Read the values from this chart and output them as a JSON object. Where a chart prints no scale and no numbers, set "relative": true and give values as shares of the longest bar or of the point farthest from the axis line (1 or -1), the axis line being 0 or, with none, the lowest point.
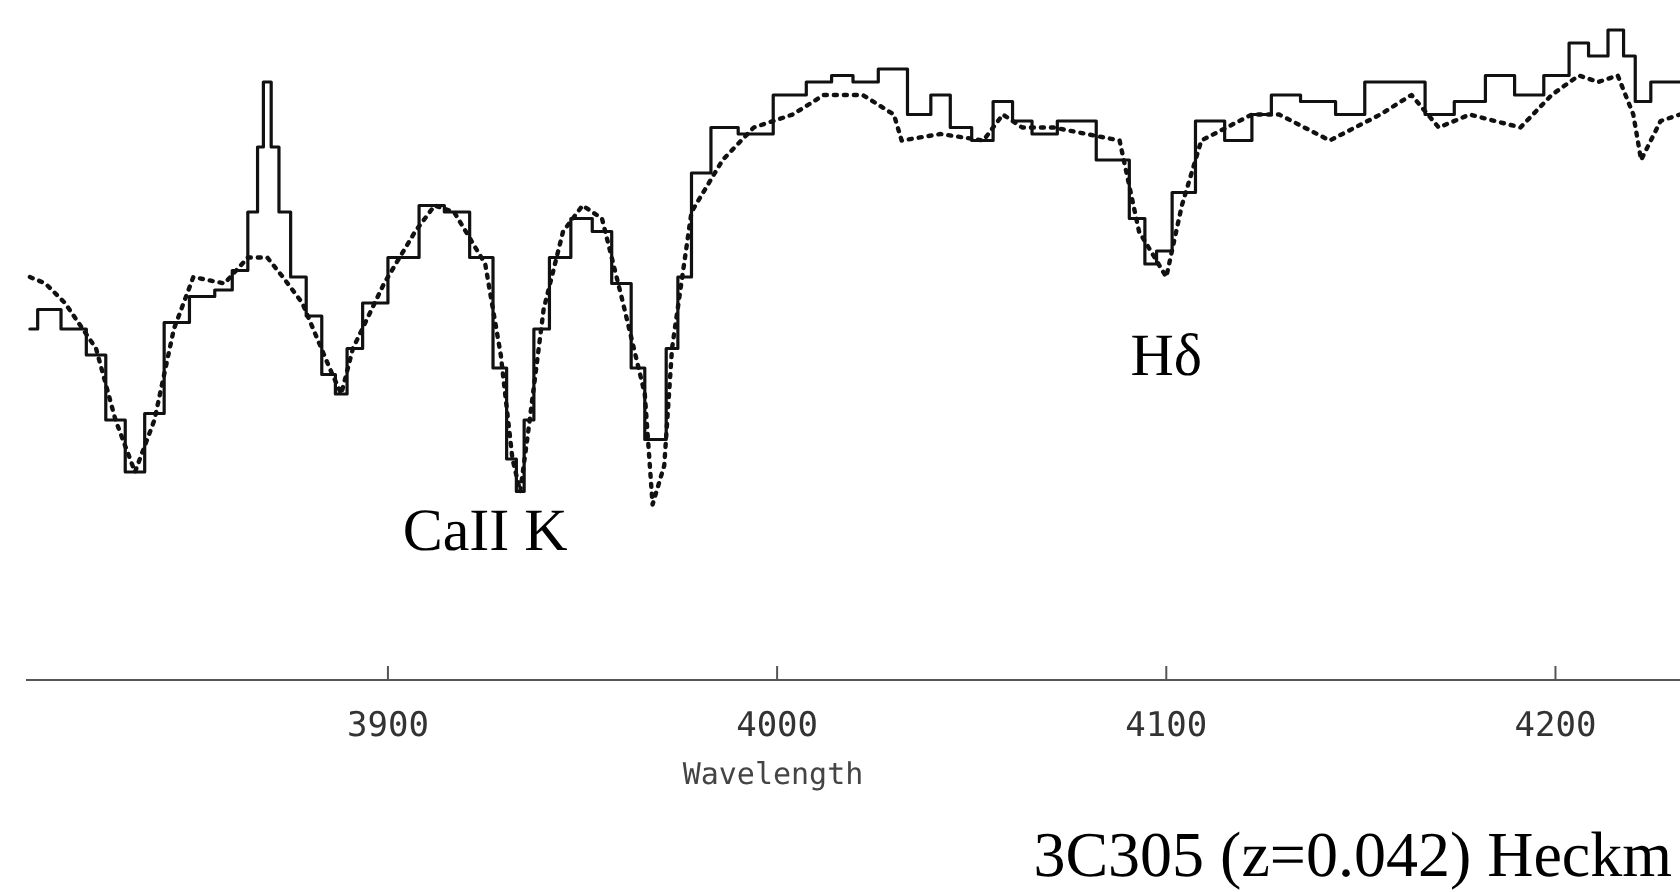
{
  "chart_data": {
    "type": "line",
    "relative": true,
    "xlabel": "Wavelength",
    "xlim": [
      3807,
      4232
    ],
    "xticks": [
      3900,
      4000,
      4100,
      4200
    ],
    "grid": false,
    "x": [
      3808,
      3812,
      3820,
      3825,
      3830,
      3835,
      3840,
      3845,
      3853,
      3858,
      3862,
      3866,
      3867,
      3869,
      3871,
      3873,
      3877,
      3881,
      3885,
      3888,
      3891,
      3896,
      3904,
      3912,
      3917,
      3925,
      3929,
      3932,
      3934,
      3936,
      3939,
      3944,
      3950,
      3955,
      3960,
      3965,
      3967,
      3970,
      3973,
      3976,
      3980,
      3986,
      3994,
      4004,
      4011,
      4017,
      4022,
      4030,
      4037,
      4042,
      4047,
      4053,
      4058,
      4063,
      4068,
      4076,
      4088,
      4093,
      4096,
      4099,
      4104,
      4111,
      4119,
      4125,
      4129,
      4140,
      4147,
      4155,
      4163,
      4170,
      4178,
      4186,
      4193,
      4201,
      4206,
      4211,
      4216,
      4219,
      4222,
      4227,
      4232
    ],
    "series": [
      {
        "type": "step",
        "color": "#111111",
        "line_style": "solid",
        "values": [
          0.54,
          0.57,
          0.54,
          0.5,
          0.4,
          0.32,
          0.41,
          0.55,
          0.59,
          0.6,
          0.63,
          0.72,
          0.82,
          0.92,
          0.82,
          0.72,
          0.62,
          0.56,
          0.47,
          0.44,
          0.51,
          0.58,
          0.65,
          0.73,
          0.72,
          0.65,
          0.48,
          0.34,
          0.29,
          0.4,
          0.54,
          0.65,
          0.71,
          0.69,
          0.61,
          0.48,
          0.37,
          0.37,
          0.51,
          0.62,
          0.78,
          0.85,
          0.84,
          0.9,
          0.92,
          0.93,
          0.92,
          0.94,
          0.87,
          0.9,
          0.85,
          0.83,
          0.89,
          0.86,
          0.84,
          0.86,
          0.8,
          0.71,
          0.64,
          0.66,
          0.75,
          0.86,
          0.83,
          0.87,
          0.9,
          0.89,
          0.87,
          0.92,
          0.92,
          0.87,
          0.89,
          0.93,
          0.9,
          0.93,
          0.98,
          0.96,
          1,
          0.96,
          0.89,
          0.92,
          0.92
        ]
      },
      {
        "color": "#111111",
        "line_style": "dotted",
        "x": [
          3808,
          3812,
          3817,
          3825,
          3830,
          3835,
          3840,
          3845,
          3850,
          3858,
          3864,
          3869,
          3873,
          3878,
          3885,
          3888,
          3891,
          3899,
          3907,
          3912,
          3917,
          3925,
          3929,
          3932,
          3934,
          3936,
          3940,
          3945,
          3950,
          3955,
          3960,
          3966,
          3968,
          3971,
          3973,
          3978,
          3986,
          3994,
          4004,
          4012,
          4022,
          4030,
          4032,
          4042,
          4053,
          4058,
          4063,
          4071,
          4088,
          4093,
          4100,
          4104,
          4109,
          4122,
          4129,
          4142,
          4155,
          4163,
          4170,
          4178,
          4191,
          4199,
          4206,
          4211,
          4216,
          4220,
          4222,
          4227,
          4232
        ],
        "values": [
          0.62,
          0.61,
          0.58,
          0.51,
          0.4,
          0.32,
          0.4,
          0.54,
          0.62,
          0.61,
          0.65,
          0.65,
          0.62,
          0.58,
          0.48,
          0.44,
          0.51,
          0.61,
          0.69,
          0.73,
          0.72,
          0.64,
          0.5,
          0.34,
          0.29,
          0.38,
          0.57,
          0.69,
          0.73,
          0.71,
          0.59,
          0.44,
          0.27,
          0.33,
          0.51,
          0.72,
          0.8,
          0.85,
          0.87,
          0.9,
          0.9,
          0.87,
          0.83,
          0.84,
          0.83,
          0.87,
          0.85,
          0.85,
          0.83,
          0.69,
          0.62,
          0.73,
          0.83,
          0.87,
          0.87,
          0.83,
          0.87,
          0.9,
          0.85,
          0.87,
          0.85,
          0.9,
          0.93,
          0.92,
          0.93,
          0.87,
          0.8,
          0.86,
          0.87
        ]
      }
    ],
    "annotations": [
      "CaII K",
      "Hδ",
      "3C305 (z=0.042) Heckm"
    ]
  }
}
